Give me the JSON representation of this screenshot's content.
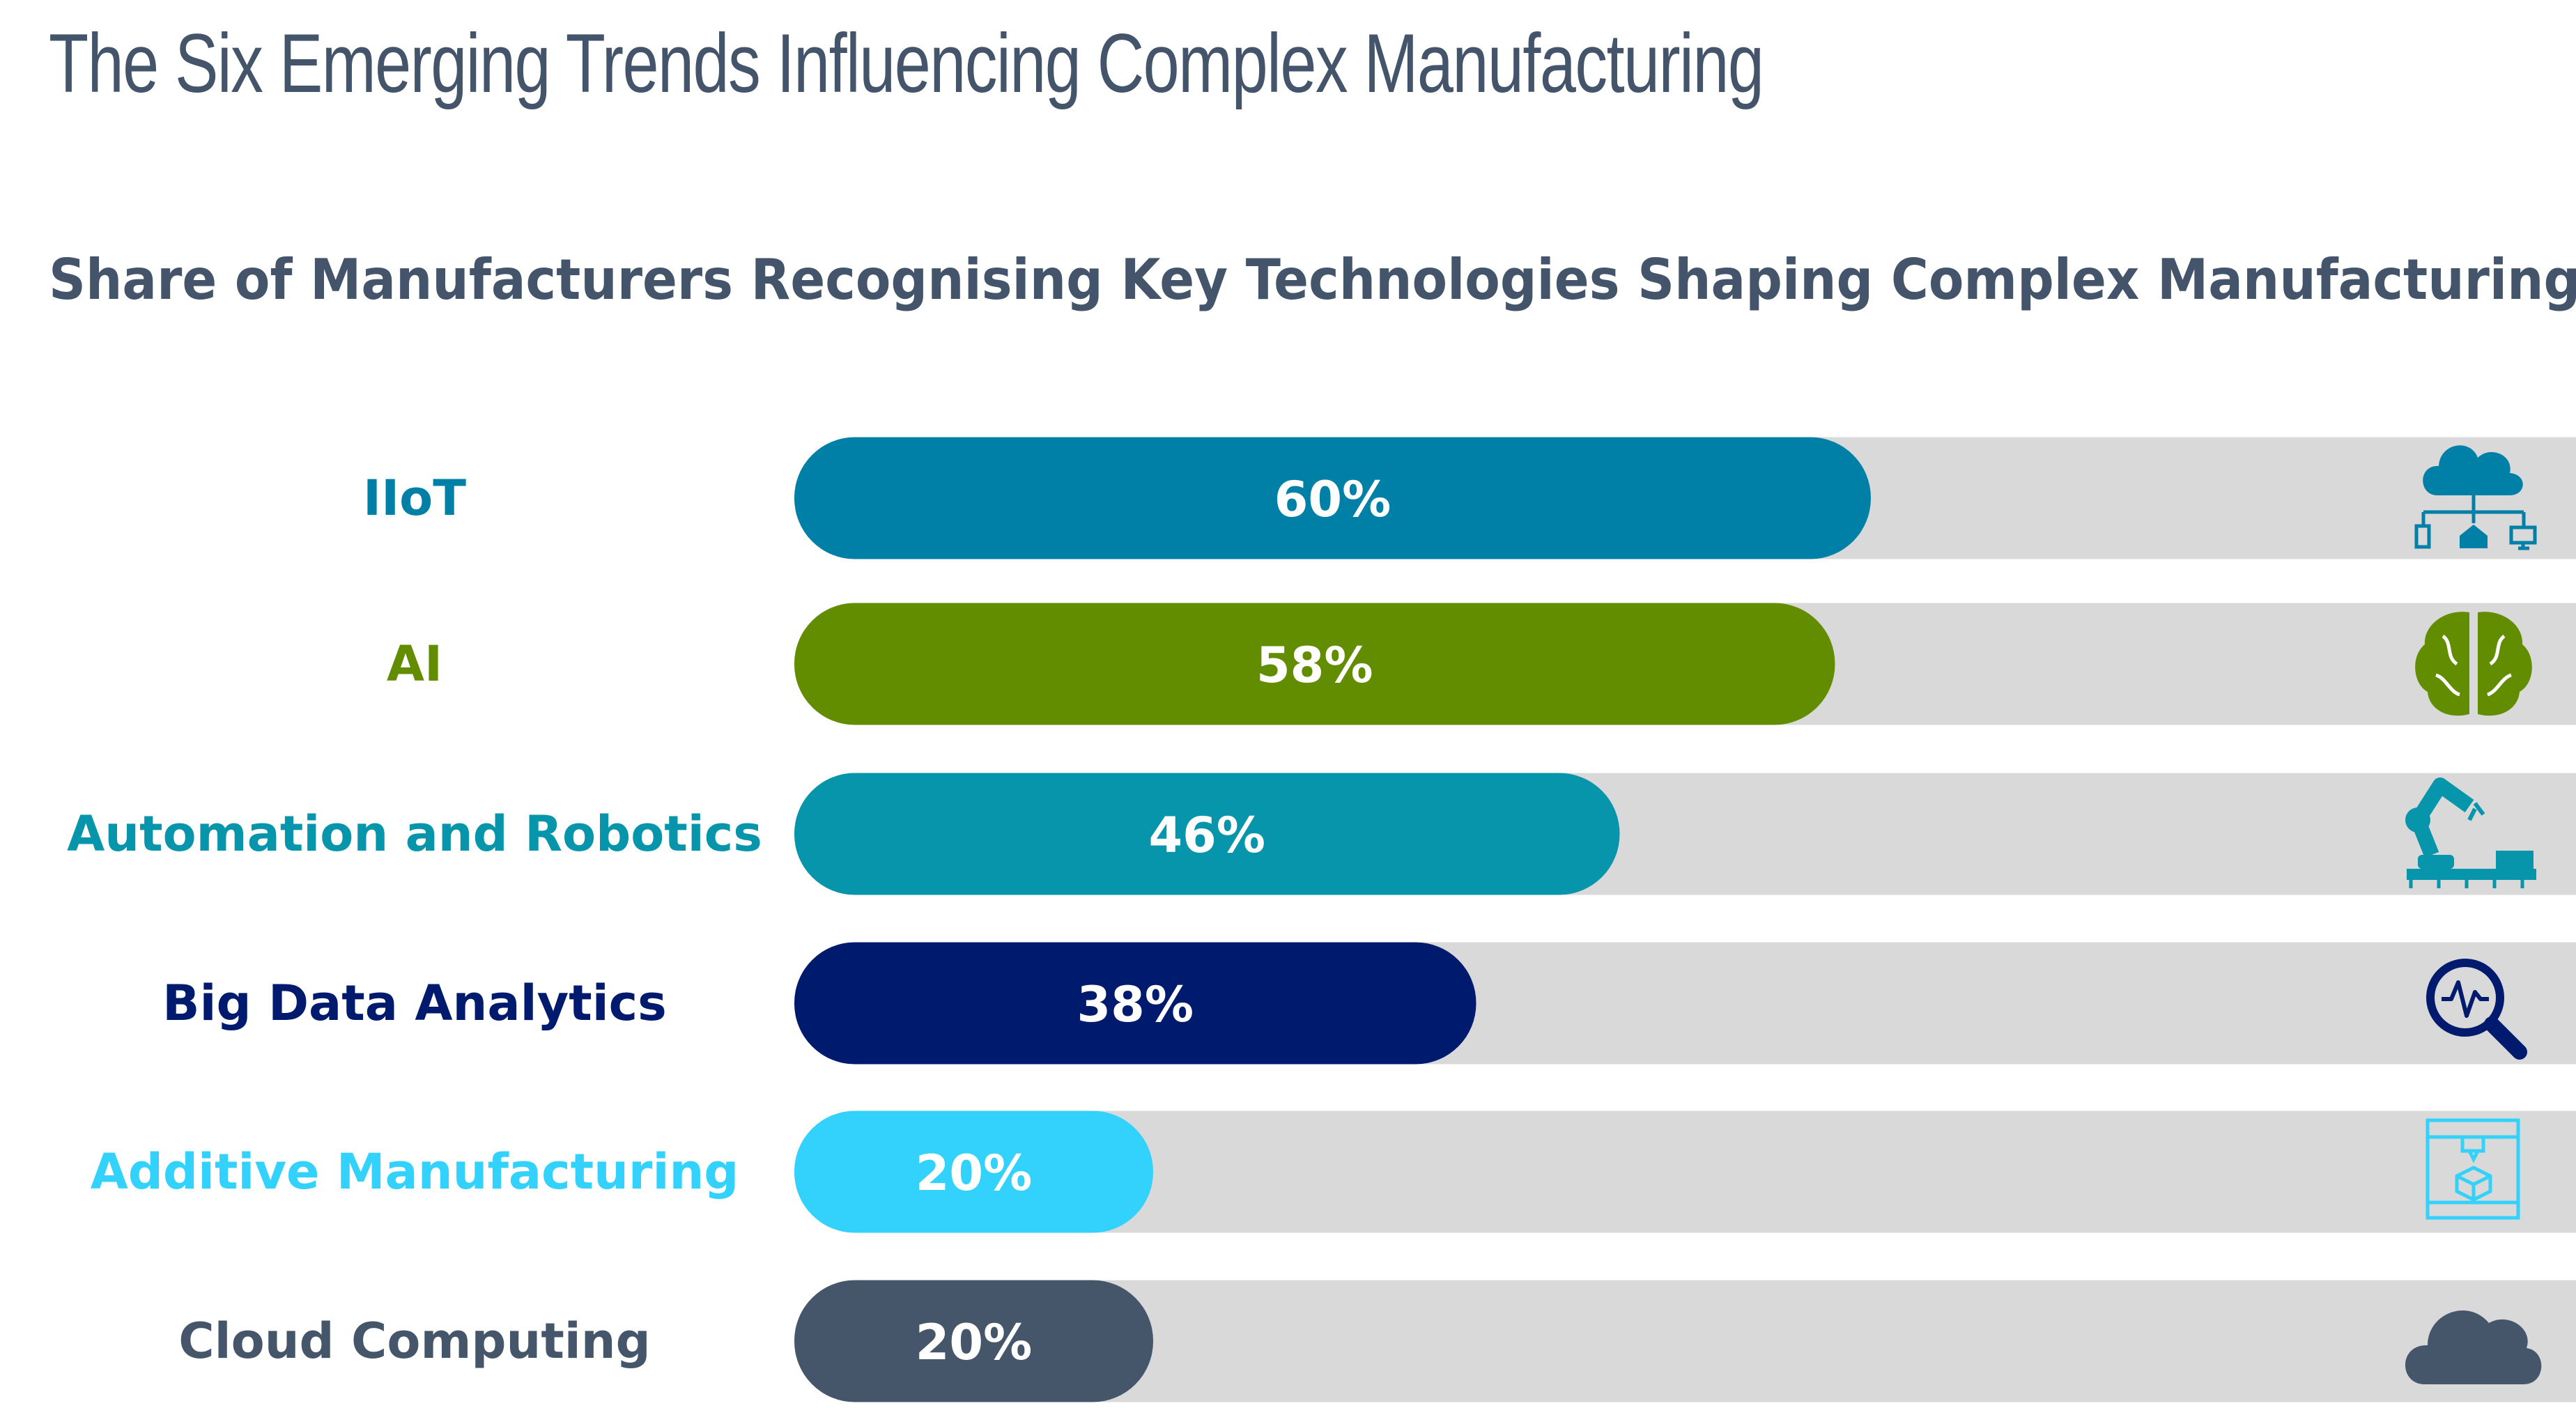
{
  "title": "The Six Emerging Trends Influencing Complex Manufacturing",
  "chart_data": {
    "type": "bar",
    "orientation": "horizontal",
    "title": "Share of Manufacturers Recognising Key Technologies Shaping Complex Manufacturing",
    "xlim": [
      0,
      100
    ],
    "grid": false,
    "categories": [
      "IIoT",
      "AI",
      "Automation and Robotics",
      "Big Data Analytics",
      "Additive Manufacturing",
      "Cloud Computing"
    ],
    "values": [
      60,
      58,
      46,
      38,
      20,
      20
    ],
    "value_labels": [
      "60%",
      "58%",
      "46%",
      "38%",
      "20%",
      "20%"
    ],
    "colors": [
      "#0080a6",
      "#638d00",
      "#0695aa",
      "#001a6e",
      "#33d2fc",
      "#46566a"
    ],
    "track_color": "#d9d9d9",
    "icons": [
      "cloud-network-icon",
      "brain-circuit-icon",
      "robot-arm-icon",
      "magnifier-pulse-icon",
      "3d-printer-icon",
      "cloud-icon"
    ]
  }
}
